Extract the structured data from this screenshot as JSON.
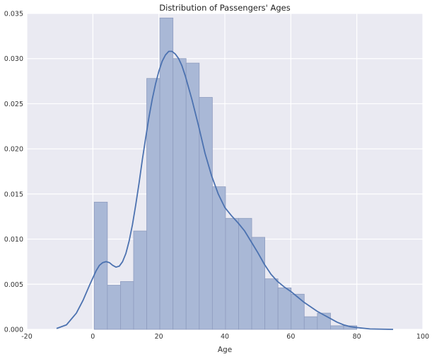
{
  "chart_data": {
    "type": "histogram",
    "title": "Distribution of Passengers' Ages",
    "xlabel": "Age",
    "ylabel": "",
    "xlim": [
      -20,
      100
    ],
    "ylim": [
      0,
      0.035
    ],
    "xticks": [
      -20,
      0,
      20,
      40,
      60,
      80,
      100
    ],
    "yticks": [
      "0.000",
      "0.005",
      "0.010",
      "0.015",
      "0.020",
      "0.025",
      "0.030",
      "0.035"
    ],
    "grid": true,
    "legend": "none",
    "colors": {
      "background": "#eaeaf2",
      "grid": "#ffffff",
      "bar_fill": "#a9b8d6",
      "bar_edge": "#8e9cbf",
      "kde_line": "#4c72b0"
    },
    "bins": [
      {
        "x0": 0.42,
        "x1": 4.4,
        "density": 0.0141
      },
      {
        "x0": 4.4,
        "x1": 8.38,
        "density": 0.0049
      },
      {
        "x0": 8.38,
        "x1": 12.35,
        "density": 0.0053
      },
      {
        "x0": 12.35,
        "x1": 16.33,
        "density": 0.0109
      },
      {
        "x0": 16.33,
        "x1": 20.31,
        "density": 0.0278
      },
      {
        "x0": 20.31,
        "x1": 24.29,
        "density": 0.0345
      },
      {
        "x0": 24.29,
        "x1": 28.26,
        "density": 0.03
      },
      {
        "x0": 28.26,
        "x1": 32.24,
        "density": 0.0295
      },
      {
        "x0": 32.24,
        "x1": 36.22,
        "density": 0.0257
      },
      {
        "x0": 36.22,
        "x1": 40.2,
        "density": 0.0158
      },
      {
        "x0": 40.2,
        "x1": 44.18,
        "density": 0.0123
      },
      {
        "x0": 44.18,
        "x1": 48.15,
        "density": 0.0123
      },
      {
        "x0": 48.15,
        "x1": 52.13,
        "density": 0.0102
      },
      {
        "x0": 52.13,
        "x1": 56.11,
        "density": 0.0056
      },
      {
        "x0": 56.11,
        "x1": 60.09,
        "density": 0.0046
      },
      {
        "x0": 60.09,
        "x1": 64.06,
        "density": 0.0039
      },
      {
        "x0": 64.06,
        "x1": 68.04,
        "density": 0.0014
      },
      {
        "x0": 68.04,
        "x1": 72.02,
        "density": 0.0018
      },
      {
        "x0": 72.02,
        "x1": 76.0,
        "density": 0.0004
      },
      {
        "x0": 76.0,
        "x1": 80.0,
        "density": 0.0004
      }
    ],
    "kde": {
      "x": [
        -11,
        -8,
        -5,
        -3,
        -1,
        0,
        1,
        2,
        3,
        4,
        5,
        6,
        7,
        8,
        9,
        10,
        11,
        12,
        13,
        14,
        15,
        16,
        17,
        18,
        19,
        20,
        21,
        22,
        23,
        24,
        25,
        26,
        27,
        28,
        30,
        32,
        34,
        36,
        38,
        40,
        42,
        44,
        46,
        48,
        50,
        52,
        54,
        56,
        58,
        60,
        62,
        64,
        66,
        68,
        70,
        72,
        74,
        76,
        78,
        80,
        84,
        88,
        91
      ],
      "y": [
        0.0001,
        0.0005,
        0.0018,
        0.0032,
        0.0049,
        0.0057,
        0.0065,
        0.0071,
        0.0074,
        0.0075,
        0.0074,
        0.0071,
        0.0069,
        0.007,
        0.0075,
        0.0084,
        0.0098,
        0.0116,
        0.0138,
        0.0162,
        0.0188,
        0.0212,
        0.0235,
        0.0255,
        0.0272,
        0.0286,
        0.0297,
        0.0304,
        0.0308,
        0.0308,
        0.0305,
        0.03,
        0.0292,
        0.0281,
        0.0255,
        0.0226,
        0.0195,
        0.017,
        0.015,
        0.0135,
        0.0126,
        0.0118,
        0.0109,
        0.0097,
        0.0085,
        0.0072,
        0.0061,
        0.0053,
        0.0047,
        0.0042,
        0.0036,
        0.003,
        0.0025,
        0.002,
        0.0016,
        0.0012,
        0.0008,
        0.0005,
        0.0003,
        0.0002,
        5e-05,
        2e-05,
        0.0
      ]
    }
  }
}
